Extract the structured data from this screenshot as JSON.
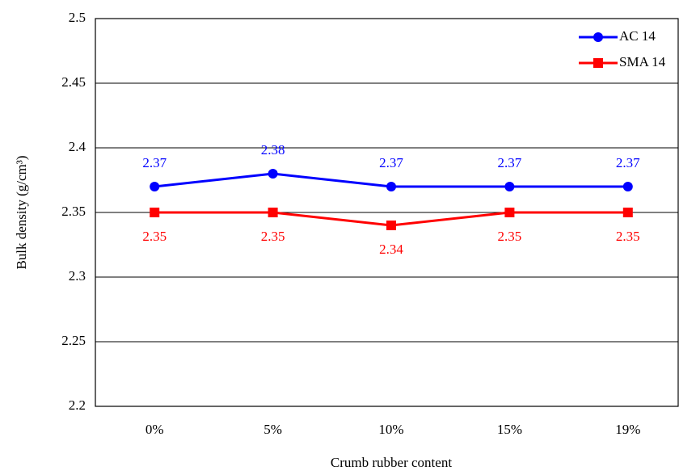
{
  "chart_data": {
    "type": "line",
    "x_label": "Crumb rubber content",
    "y_label": "Bulk density (g/cm³)",
    "categories": [
      "0%",
      "5%",
      "10%",
      "15%",
      "19%"
    ],
    "series": [
      {
        "name": "AC 14",
        "color": "#0000ff",
        "marker": "circle",
        "values": [
          2.37,
          2.38,
          2.37,
          2.37,
          2.37
        ]
      },
      {
        "name": "SMA 14",
        "color": "#ff0000",
        "marker": "square",
        "values": [
          2.35,
          2.35,
          2.34,
          2.35,
          2.35
        ]
      }
    ],
    "ylim": [
      2.2,
      2.5
    ],
    "yticks": [
      2.2,
      2.25,
      2.3,
      2.35,
      2.4,
      2.45,
      2.5
    ],
    "grid": true,
    "legend": "top-right"
  }
}
